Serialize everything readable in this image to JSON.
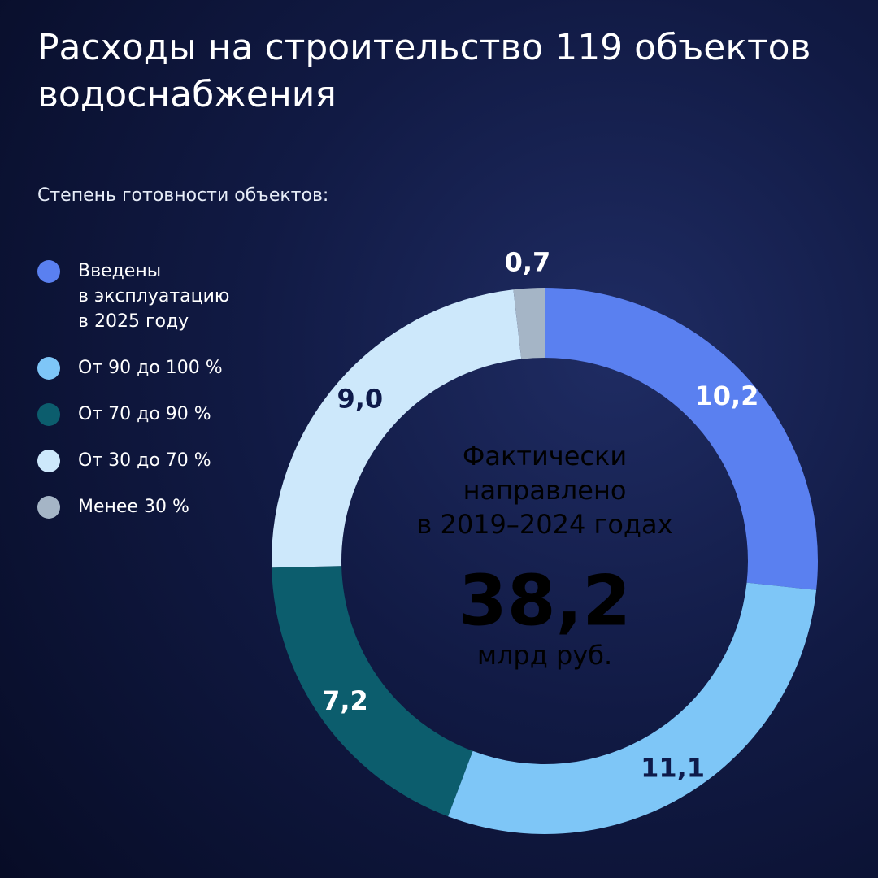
{
  "chart_data": {
    "type": "donut",
    "title": "Расходы на строительство 119 объектов водоснабжения",
    "subtitle": "Степень готовности объектов:",
    "categories": [
      "Введены\nв эксплуатацию\nв 2025 году",
      "От 90 до 100 %",
      "От 70 до 90 %",
      "От 30 до 70 %",
      "Менее 30 %"
    ],
    "values": [
      10.2,
      11.1,
      7.2,
      9.0,
      0.7
    ],
    "value_labels": [
      "10,2",
      "11,1",
      "7,2",
      "9,0",
      "0,7"
    ],
    "colors": [
      "#5a80f0",
      "#7ec6f7",
      "#0c5d6d",
      "#cde8fb",
      "#a5b5c6"
    ],
    "center_text": "Фактически направлено в 2019–2024 годах",
    "total": 38.2,
    "total_label": "38,2",
    "unit": "млрд руб."
  }
}
